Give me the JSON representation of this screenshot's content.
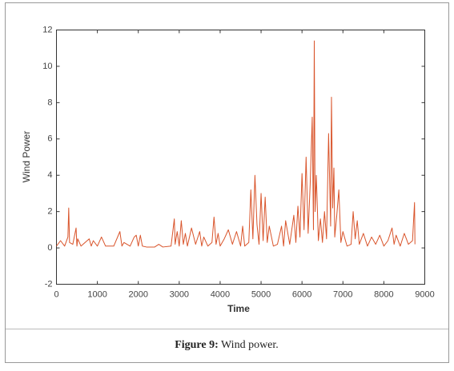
{
  "chart_data": {
    "type": "line",
    "xlabel": "Time",
    "ylabel": "Wind Power",
    "xlim": [
      0,
      9000
    ],
    "xticks": [
      0,
      1000,
      2000,
      3000,
      4000,
      5000,
      6000,
      7000,
      8000,
      9000
    ],
    "ylim": [
      -2,
      12
    ],
    "yticks": [
      -2,
      0,
      2,
      4,
      6,
      8,
      10,
      12
    ],
    "grid": false,
    "color": "#d9542b",
    "x": [
      0,
      100,
      200,
      280,
      300,
      320,
      400,
      480,
      500,
      520,
      600,
      800,
      850,
      900,
      1000,
      1100,
      1200,
      1400,
      1550,
      1600,
      1650,
      1800,
      1900,
      1950,
      2000,
      2050,
      2100,
      2200,
      2400,
      2500,
      2600,
      2800,
      2880,
      2900,
      2950,
      3000,
      3050,
      3100,
      3150,
      3200,
      3300,
      3400,
      3500,
      3550,
      3600,
      3700,
      3800,
      3850,
      3900,
      3950,
      4000,
      4100,
      4200,
      4300,
      4400,
      4500,
      4550,
      4600,
      4700,
      4750,
      4800,
      4850,
      4900,
      4950,
      5000,
      5050,
      5100,
      5150,
      5200,
      5300,
      5400,
      5500,
      5550,
      5600,
      5700,
      5800,
      5850,
      5900,
      5950,
      6000,
      6050,
      6100,
      6150,
      6200,
      6250,
      6280,
      6300,
      6320,
      6350,
      6400,
      6450,
      6500,
      6550,
      6600,
      6650,
      6700,
      6720,
      6750,
      6780,
      6800,
      6850,
      6900,
      6950,
      7000,
      7100,
      7200,
      7250,
      7300,
      7350,
      7400,
      7500,
      7600,
      7700,
      7800,
      7900,
      8000,
      8100,
      8200,
      8250,
      8300,
      8400,
      8500,
      8600,
      8700,
      8750,
      8760
    ],
    "values": [
      0.1,
      0.4,
      0.1,
      0.6,
      2.2,
      0.3,
      0.2,
      1.1,
      0.1,
      0.5,
      0.1,
      0.5,
      0.1,
      0.4,
      0.1,
      0.6,
      0.1,
      0.1,
      0.9,
      0.1,
      0.3,
      0.1,
      0.6,
      0.7,
      0.1,
      0.7,
      0.1,
      0.05,
      0.05,
      0.2,
      0.05,
      0.1,
      1.6,
      0.2,
      0.9,
      0.1,
      1.5,
      0.2,
      0.8,
      0.1,
      1.1,
      0.2,
      0.9,
      0.1,
      0.6,
      0.1,
      0.3,
      1.7,
      0.2,
      0.8,
      0.1,
      0.5,
      1,
      0.2,
      0.9,
      0.1,
      1.2,
      0.1,
      0.3,
      3.2,
      0.5,
      4,
      1.3,
      0.2,
      3,
      0.4,
      2.8,
      0.3,
      1.2,
      0.1,
      0.2,
      1.2,
      0.1,
      1.5,
      0.2,
      1.8,
      0.3,
      2.3,
      0.6,
      4.1,
      1,
      5,
      0.8,
      3.5,
      7.2,
      1,
      11.4,
      2,
      4,
      0.4,
      1.6,
      0.3,
      2,
      0.5,
      6.3,
      1.2,
      8.3,
      2.2,
      4.4,
      0.6,
      1.8,
      3.2,
      0.3,
      0.9,
      0.1,
      0.2,
      2,
      0.5,
      1.5,
      0.2,
      0.8,
      0.1,
      0.6,
      0.2,
      0.7,
      0.1,
      0.4,
      1.1,
      0.2,
      0.7,
      0.1,
      0.8,
      0.2,
      0.4,
      2.5,
      0.2
    ]
  },
  "caption": {
    "label": "Figure 9:",
    "text": "Wind power."
  }
}
